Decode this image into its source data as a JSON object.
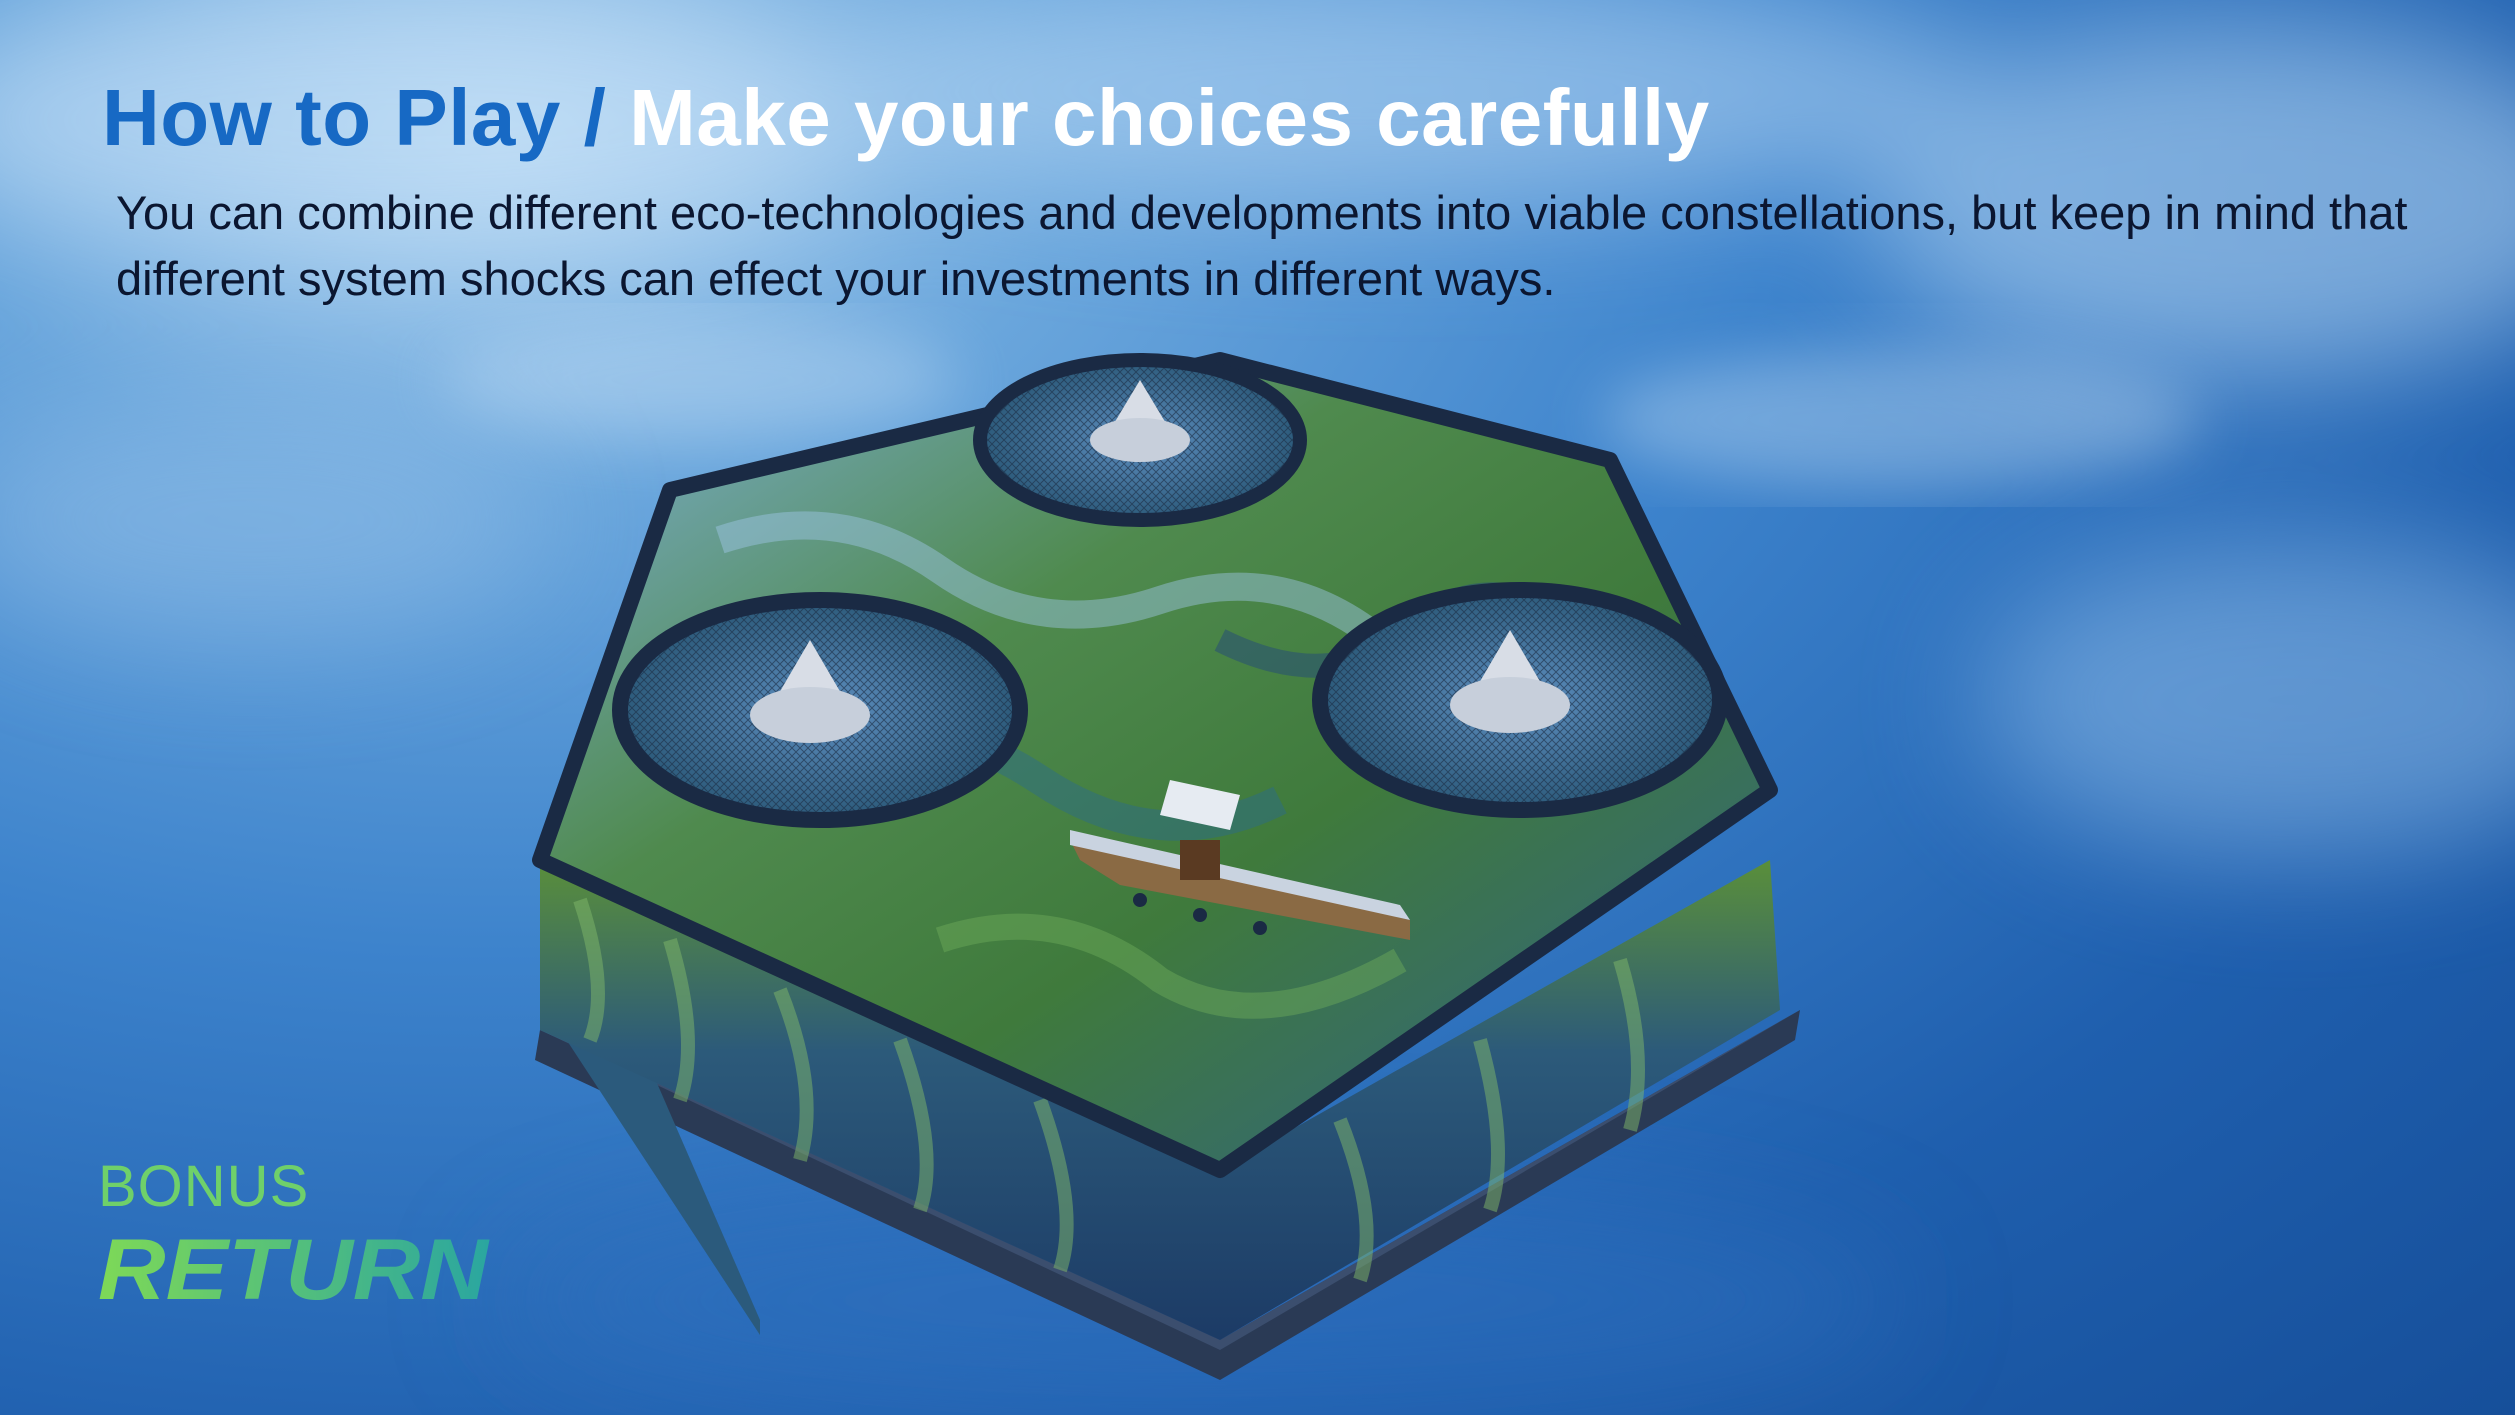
{
  "header": {
    "title_prefix": "How to Play",
    "title_separator": " / ",
    "title_main": "Make your choices carefully",
    "description": "You can combine different eco-technologies and developments into viable constellations, but keep in mind that different system shocks can effect your investments in different ways."
  },
  "logo": {
    "top_text": "BONUS",
    "bottom_text": "RETURN",
    "color_top": "#6fd06a",
    "color_bottom_start": "#7ed957",
    "color_bottom_end": "#2aa6a0"
  },
  "scene": {
    "board_shape": "hexagon-island",
    "fish_cages": 3,
    "boats": 1
  },
  "colors": {
    "sky_light": "#a9cfee",
    "sky_dark": "#164f9a",
    "title_accent": "#1769c4",
    "title_white": "#ffffff",
    "text_dark": "#0b1630"
  }
}
